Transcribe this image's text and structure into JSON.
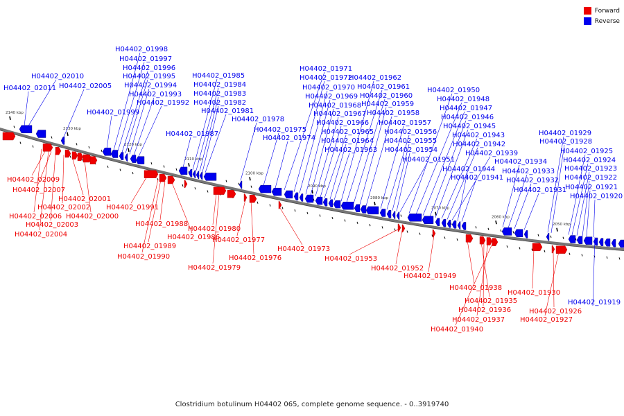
{
  "legend": {
    "forward_label": "Forward",
    "reverse_label": "Reverse",
    "forward_color": "#ee0000",
    "reverse_color": "#0000ee"
  },
  "caption": "Clostridium botulinum H04402 065, complete genome sequence. - 0..3919740",
  "colors": {
    "backbone": "#777777",
    "forward": "#ee0000",
    "reverse": "#0000ee"
  },
  "ticks": [
    "2140 kbp",
    "2130 kbp",
    "2120 kbp",
    "2110 kbp",
    "2100 kbp",
    "2090 kbp",
    "2080 kbp",
    "2070 kbp",
    "2060 kbp",
    "2050 kbp"
  ],
  "reverse_labels": [
    "H04402_01998",
    "H04402_01997",
    "H04402_01996",
    "H04402_01995",
    "H04402_01994",
    "H04402_01993",
    "H04402_01992",
    "H04402_01999",
    "H04402_02010",
    "H04402_02011",
    "H04402_02005",
    "H04402_01985",
    "H04402_01984",
    "H04402_01983",
    "H04402_01982",
    "H04402_01981",
    "H04402_01987",
    "H04402_01978",
    "H04402_01975",
    "H04402_01974",
    "H04402_01971",
    "H04402_01972",
    "H04402_01970",
    "H04402_01969",
    "H04402_01968",
    "H04402_01967",
    "H04402_01966",
    "H04402_01965",
    "H04402_01964",
    "H04402_01963",
    "H04402_01962",
    "H04402_01961",
    "H04402_01960",
    "H04402_01959",
    "H04402_01958",
    "H04402_01957",
    "H04402_01956",
    "H04402_01955",
    "H04402_01954",
    "H04402_01951",
    "H04402_01950",
    "H04402_01948",
    "H04402_01947",
    "H04402_01946",
    "H04402_01945",
    "H04402_01943",
    "H04402_01942",
    "H04402_01939",
    "H04402_01944",
    "H04402_01941",
    "H04402_01934",
    "H04402_01933",
    "H04402_01932",
    "H04402_01931",
    "H04402_01929",
    "H04402_01928",
    "H04402_01925",
    "H04402_01924",
    "H04402_01923",
    "H04402_01922",
    "H04402_01921",
    "H04402_01920",
    "H04402_01919"
  ],
  "forward_labels": [
    "H04402_02009",
    "H04402_02007",
    "H04402_02001",
    "H04402_02002",
    "H04402_02006",
    "H04402_02000",
    "H04402_02003",
    "H04402_02004",
    "H04402_01991",
    "H04402_01988",
    "H04402_01986",
    "H04402_01989",
    "H04402_01990",
    "H04402_01980",
    "H04402_01977",
    "H04402_01976",
    "H04402_01979",
    "H04402_01973",
    "H04402_01953",
    "H04402_01952",
    "H04402_01949",
    "H04402_01938",
    "H04402_01935",
    "H04402_01936",
    "H04402_01937",
    "H04402_01940",
    "H04402_01930",
    "H04402_01926",
    "H04402_01927"
  ]
}
